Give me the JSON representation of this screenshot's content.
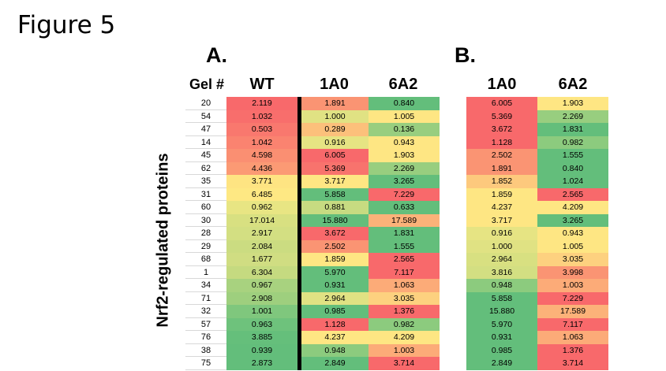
{
  "figure_title": "Figure 5",
  "panel_a": {
    "label": "A.",
    "headers": {
      "gel": "Gel #",
      "wt": "WT",
      "c1": "1A0",
      "c2": "6A2"
    }
  },
  "panel_b": {
    "label": "B.",
    "headers": {
      "c1": "1A0",
      "c2": "6A2"
    }
  },
  "y_label": "Nrf2-regulated proteins",
  "chart_data": {
    "type": "heatmap",
    "title": "Figure 5",
    "ylabel": "Nrf2-regulated proteins",
    "color_scale": {
      "high_or_low_extreme": "#f8696b",
      "mid": "#ffeb84",
      "other_extreme": "#63be7b"
    },
    "panel_a": {
      "columns": [
        "Gel #",
        "WT",
        "1A0",
        "6A2"
      ],
      "rows": [
        {
          "gel": "20",
          "wt": "2.119",
          "wtc": "#f8696b",
          "a": "1.891",
          "ac": "#fa9473",
          "b": "0.840",
          "bc": "#63be7b"
        },
        {
          "gel": "54",
          "wt": "1.032",
          "wtc": "#f86e6c",
          "a": "1.000",
          "ac": "#e0e283",
          "b": "1.005",
          "bc": "#fee683"
        },
        {
          "gel": "47",
          "wt": "0.503",
          "wtc": "#f9786e",
          "a": "0.289",
          "ac": "#fcc07b",
          "b": "0.136",
          "bc": "#98ce7f"
        },
        {
          "gel": "14",
          "wt": "1.042",
          "wtc": "#fa8370",
          "a": "0.916",
          "ac": "#e6e483",
          "b": "0.943",
          "bc": "#fee683"
        },
        {
          "gel": "45",
          "wt": "4.598",
          "wtc": "#fa8f72",
          "a": "6.005",
          "ac": "#f8696b",
          "b": "1.903",
          "bc": "#fee683"
        },
        {
          "gel": "62",
          "wt": "4.436",
          "wtc": "#fb9a74",
          "a": "5.369",
          "ac": "#f8736d",
          "b": "2.269",
          "bc": "#98ce7f"
        },
        {
          "gel": "35",
          "wt": "3.771",
          "wtc": "#fee482",
          "a": "3.717",
          "ac": "#fee683",
          "b": "3.265",
          "bc": "#63be7b"
        },
        {
          "gel": "31",
          "wt": "6.485",
          "wtc": "#fee883",
          "a": "5.858",
          "ac": "#63be7b",
          "b": "7.229",
          "bc": "#f8696b"
        },
        {
          "gel": "60",
          "wt": "0.962",
          "wtc": "#e8e583",
          "a": "0.881",
          "ac": "#c7db81",
          "b": "0.633",
          "bc": "#63be7b"
        },
        {
          "gel": "30",
          "wt": "17.014",
          "wtc": "#d8e081",
          "a": "15.880",
          "ac": "#63be7b",
          "b": "17.589",
          "bc": "#fcb279"
        },
        {
          "gel": "28",
          "wt": "2.917",
          "wtc": "#d3df82",
          "a": "3.672",
          "ac": "#f8696b",
          "b": "1.831",
          "bc": "#63be7b"
        },
        {
          "gel": "29",
          "wt": "2.084",
          "wtc": "#cbdc81",
          "a": "2.502",
          "ac": "#fa9473",
          "b": "1.555",
          "bc": "#63be7b"
        },
        {
          "gel": "68",
          "wt": "1.677",
          "wtc": "#d0dd82",
          "a": "1.859",
          "ac": "#fee683",
          "b": "2.565",
          "bc": "#f8696b"
        },
        {
          "gel": "1",
          "wt": "6.304",
          "wtc": "#c5da80",
          "a": "5.970",
          "ac": "#63be7b",
          "b": "7.117",
          "bc": "#f8696b"
        },
        {
          "gel": "34",
          "wt": "0.967",
          "wtc": "#a8d27f",
          "a": "0.931",
          "ac": "#63be7b",
          "b": "1.063",
          "bc": "#fcab78"
        },
        {
          "gel": "71",
          "wt": "2.908",
          "wtc": "#9ecf7e",
          "a": "2.964",
          "ac": "#e0e283",
          "b": "3.035",
          "bc": "#fdd17f"
        },
        {
          "gel": "32",
          "wt": "1.001",
          "wtc": "#7fc77d",
          "a": "0.985",
          "ac": "#63be7b",
          "b": "1.376",
          "bc": "#f8696b"
        },
        {
          "gel": "57",
          "wt": "0.963",
          "wtc": "#6ec27c",
          "a": "1.128",
          "ac": "#f8696b",
          "b": "0.982",
          "bc": "#8ccb7e"
        },
        {
          "gel": "76",
          "wt": "3.885",
          "wtc": "#65bf7b",
          "a": "4.237",
          "ac": "#fee683",
          "b": "4.209",
          "bc": "#fee683"
        },
        {
          "gel": "38",
          "wt": "0.939",
          "wtc": "#63be7b",
          "a": "0.948",
          "ac": "#8ccb7e",
          "b": "1.003",
          "bc": "#fcab78"
        },
        {
          "gel": "75",
          "wt": "2.873",
          "wtc": "#63be7b",
          "a": "2.849",
          "ac": "#63be7b",
          "b": "3.714",
          "bc": "#f8696b"
        }
      ]
    },
    "panel_b": {
      "columns": [
        "1A0",
        "6A2"
      ],
      "rows": [
        {
          "a": "6.005",
          "ac": "#f8696b",
          "b": "1.903",
          "bc": "#fee683"
        },
        {
          "a": "5.369",
          "ac": "#f8696b",
          "b": "2.269",
          "bc": "#98ce7f"
        },
        {
          "a": "3.672",
          "ac": "#f8696b",
          "b": "1.831",
          "bc": "#63be7b"
        },
        {
          "a": "1.128",
          "ac": "#f8696b",
          "b": "0.982",
          "bc": "#8ccb7e"
        },
        {
          "a": "2.502",
          "ac": "#fa9473",
          "b": "1.555",
          "bc": "#63be7b"
        },
        {
          "a": "1.891",
          "ac": "#fa9473",
          "b": "0.840",
          "bc": "#63be7b"
        },
        {
          "a": "1.852",
          "ac": "#fdc97d",
          "b": "1.024",
          "bc": "#63be7b"
        },
        {
          "a": "1.859",
          "ac": "#fee683",
          "b": "2.565",
          "bc": "#f8696b"
        },
        {
          "a": "4.237",
          "ac": "#fee683",
          "b": "4.209",
          "bc": "#fee683"
        },
        {
          "a": "3.717",
          "ac": "#fee683",
          "b": "3.265",
          "bc": "#63be7b"
        },
        {
          "a": "0.916",
          "ac": "#e6e483",
          "b": "0.943",
          "bc": "#fee683"
        },
        {
          "a": "1.000",
          "ac": "#e0e283",
          "b": "1.005",
          "bc": "#fee683"
        },
        {
          "a": "2.964",
          "ac": "#d8e081",
          "b": "3.035",
          "bc": "#fdd17f"
        },
        {
          "a": "3.816",
          "ac": "#d3df82",
          "b": "3.998",
          "bc": "#fa9473"
        },
        {
          "a": "0.948",
          "ac": "#8ccb7e",
          "b": "1.003",
          "bc": "#fcab78"
        },
        {
          "a": "5.858",
          "ac": "#63be7b",
          "b": "7.229",
          "bc": "#f8696b"
        },
        {
          "a": "15.880",
          "ac": "#63be7b",
          "b": "17.589",
          "bc": "#fcb279"
        },
        {
          "a": "5.970",
          "ac": "#63be7b",
          "b": "7.117",
          "bc": "#f8696b"
        },
        {
          "a": "0.931",
          "ac": "#63be7b",
          "b": "1.063",
          "bc": "#fcab78"
        },
        {
          "a": "0.985",
          "ac": "#63be7b",
          "b": "1.376",
          "bc": "#f8696b"
        },
        {
          "a": "2.849",
          "ac": "#63be7b",
          "b": "3.714",
          "bc": "#f8696b"
        }
      ]
    }
  }
}
